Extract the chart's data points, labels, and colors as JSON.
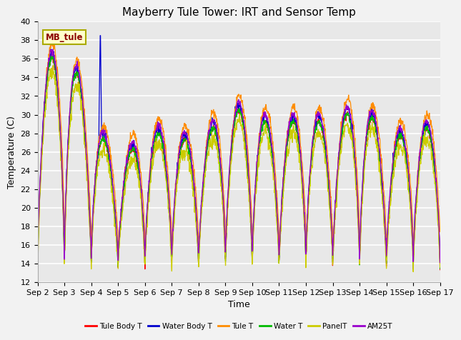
{
  "title": "Mayberry Tule Tower: IRT and Sensor Temp",
  "xlabel": "Time",
  "ylabel": "Temperature (C)",
  "ylim": [
    12,
    40
  ],
  "xlim": [
    0,
    15
  ],
  "annotation": "MB_tule",
  "legend_entries": [
    "Tule Body T",
    "Water Body T",
    "Tule T",
    "Water T",
    "PanelT",
    "AM25T"
  ],
  "legend_colors": [
    "#ff0000",
    "#0000cd",
    "#ff8c00",
    "#00bb00",
    "#cccc00",
    "#9900cc"
  ],
  "x_tick_labels": [
    "Sep 2",
    "Sep 3",
    "Sep 4",
    "Sep 5",
    "Sep 6",
    "Sep 7",
    "Sep 8",
    "Sep 9",
    "Sep 10",
    "Sep 11",
    "Sep 12",
    "Sep 13",
    "Sep 14",
    "Sep 15",
    "Sep 16",
    "Sep 17"
  ],
  "background_color": "#e8e8e8",
  "grid_color": "#ffffff",
  "title_fontsize": 11,
  "axis_fontsize": 9,
  "tick_fontsize": 8,
  "day_peaks": [
    33.5,
    38.5,
    30.0,
    24.5,
    28.0,
    28.0,
    26.5,
    30.5,
    30.5,
    28.0,
    30.5,
    28.0,
    32.0,
    27.0,
    28.5,
    28.5
  ],
  "trough_base": 13.5
}
